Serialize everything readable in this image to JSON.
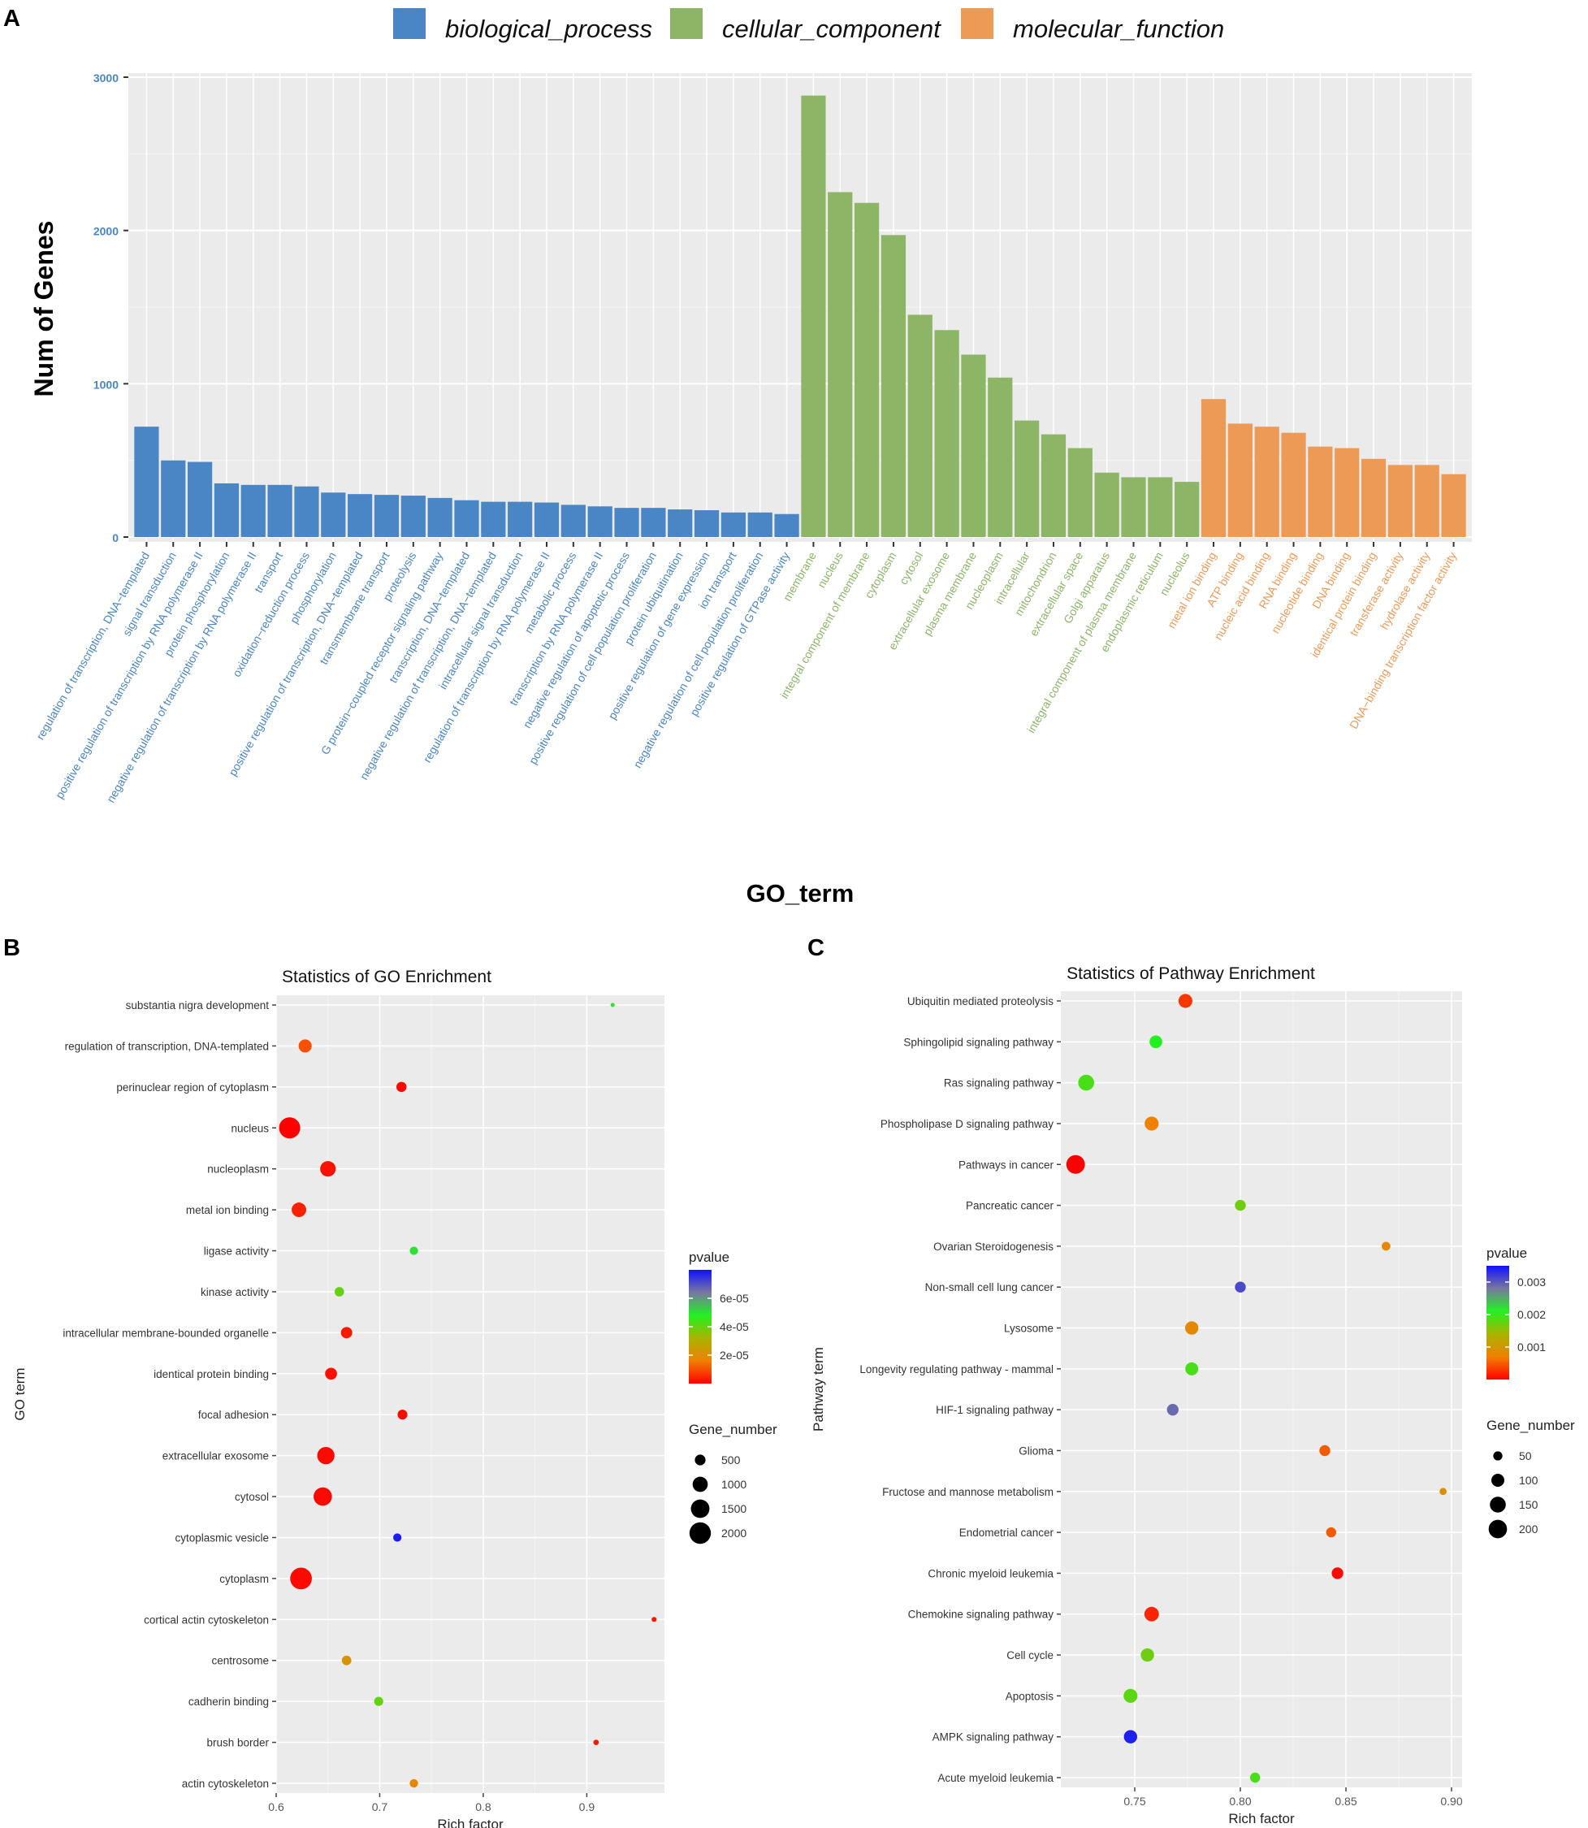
{
  "panels": {
    "a": "A",
    "b": "B",
    "c": "C"
  },
  "chart_data": [
    {
      "type": "bar",
      "panel": "A",
      "title": "",
      "xlabel": "GO_term",
      "ylabel": "Num of Genes",
      "ylim": [
        0,
        3000
      ],
      "yticks": [
        0,
        1000,
        2000,
        3000
      ],
      "legend_position": "top",
      "colors": {
        "biological_process": "#4a86c5",
        "cellular_component": "#8db566",
        "molecular_function": "#ee9a57"
      },
      "legend": [
        {
          "key": "biological_process",
          "label": "biological_process"
        },
        {
          "key": "cellular_component",
          "label": "cellular_component"
        },
        {
          "key": "molecular_function",
          "label": "molecular_function"
        }
      ],
      "series": [
        {
          "name": "biological_process",
          "categories": [
            "regulation of transcription, DNA−templated",
            "signal transduction",
            "positive regulation of transcription by RNA polymerase II",
            "protein phosphorylation",
            "negative regulation of transcription by RNA polymerase II",
            "transport",
            "oxidation−reduction process",
            "phosphorylation",
            "positive regulation of transcription, DNA−templated",
            "transmembrane transport",
            "proteolysis",
            "G protein−coupled receptor signaling pathway",
            "transcription, DNA−templated",
            "negative regulation of transcription, DNA−templated",
            "intracellular signal transduction",
            "regulation of transcription by RNA polymerase II",
            "metabolic process",
            "transcription by RNA polymerase II",
            "negative regulation of apoptotic process",
            "positive regulation of cell population proliferation",
            "protein ubiquitination",
            "positive regulation of gene expression",
            "ion transport",
            "negative regulation of cell population proliferation",
            "positive regulation of GTPase activity"
          ],
          "values": [
            720,
            500,
            490,
            350,
            340,
            340,
            330,
            290,
            280,
            275,
            270,
            255,
            240,
            230,
            230,
            225,
            210,
            200,
            190,
            190,
            180,
            175,
            160,
            160,
            150
          ]
        },
        {
          "name": "cellular_component",
          "categories": [
            "membrane",
            "nucleus",
            "integral component of membrane",
            "cytoplasm",
            "cytosol",
            "extracellular exosome",
            "plasma membrane",
            "nucleoplasm",
            "intracellular",
            "mitochondrion",
            "extracellular space",
            "Golgi apparatus",
            "integral component of plasma membrane",
            "endoplasmic reticulum",
            "nucleolus"
          ],
          "values": [
            2880,
            2250,
            2180,
            1970,
            1450,
            1350,
            1190,
            1040,
            760,
            670,
            580,
            420,
            390,
            390,
            360
          ]
        },
        {
          "name": "molecular_function",
          "categories": [
            "metal ion binding",
            "ATP binding",
            "nucleic acid binding",
            "RNA binding",
            "nucleotide binding",
            "DNA binding",
            "identical protein binding",
            "transferase activity",
            "hydrolase activity",
            "DNA−binding transcription factor activity"
          ],
          "values": [
            900,
            740,
            720,
            680,
            590,
            580,
            510,
            470,
            470,
            410
          ]
        }
      ]
    },
    {
      "type": "scatter",
      "panel": "B",
      "title": "Statistics of GO Enrichment",
      "xlabel": "Rich factor",
      "ylabel": "GO term",
      "xlim": [
        0.6,
        0.975
      ],
      "xticks": [
        "0.6",
        "0.7",
        "0.8",
        "0.9"
      ],
      "color_legend_title": "pvalue",
      "color_range": [
        0,
        8e-05
      ],
      "color_legend_ticks": [
        "6e-05",
        "4e-05",
        "2e-05"
      ],
      "color_legend_tick_values": [
        6e-05,
        4e-05,
        2e-05
      ],
      "size_legend_title": "Gene_number",
      "size_legend": [
        500,
        1000,
        1500,
        2000
      ],
      "size_legend_labels": [
        "500",
        "1000",
        "1500",
        "2000"
      ],
      "size_range": [
        0,
        2250
      ],
      "terms": [
        "substantia nigra development",
        "regulation of transcription, DNA-templated",
        "perinuclear region of cytoplasm",
        "nucleus",
        "nucleoplasm",
        "metal ion binding",
        "ligase activity",
        "kinase activity",
        "intracellular membrane-bounded organelle",
        "identical protein binding",
        "focal adhesion",
        "extracellular exosome",
        "cytosol",
        "cytoplasmic vesicle",
        "cytoplasm",
        "cortical actin cytoskeleton",
        "centrosome",
        "cadherin binding",
        "brush border",
        "actin cytoskeleton"
      ],
      "rich_factor": [
        0.925,
        0.628,
        0.721,
        0.613,
        0.65,
        0.622,
        0.733,
        0.661,
        0.668,
        0.653,
        0.722,
        0.648,
        0.645,
        0.717,
        0.624,
        0.965,
        0.668,
        0.699,
        0.909,
        0.733
      ],
      "pvalue": [
        5e-05,
        1e-05,
        1e-06,
        0.0,
        2e-06,
        4e-06,
        5e-05,
        4e-05,
        3e-06,
        2e-06,
        1e-06,
        1e-06,
        1e-06,
        7.8e-05,
        1e-06,
        3e-06,
        2.2e-05,
        4e-05,
        3e-06,
        1.8e-05
      ],
      "gene_number": [
        60,
        750,
        450,
        1950,
        1050,
        920,
        300,
        390,
        560,
        620,
        420,
        1300,
        1470,
        300,
        2050,
        110,
        400,
        360,
        130,
        310
      ]
    },
    {
      "type": "scatter",
      "panel": "C",
      "title": "Statistics of Pathway Enrichment",
      "xlabel": "Rich factor",
      "ylabel": "Pathway term",
      "xlim": [
        0.715,
        0.905
      ],
      "xticks": [
        "0.75",
        "0.80",
        "0.85",
        "0.90"
      ],
      "color_legend_title": "pvalue",
      "color_range": [
        0,
        0.0035
      ],
      "color_legend_ticks": [
        "0.003",
        "0.002",
        "0.001"
      ],
      "color_legend_tick_values": [
        0.003,
        0.002,
        0.001
      ],
      "size_legend_title": "Gene_number",
      "size_legend": [
        50,
        100,
        150,
        200
      ],
      "size_legend_labels": [
        "50",
        "100",
        "150",
        "200"
      ],
      "size_range": [
        0,
        225
      ],
      "terms": [
        "Ubiquitin mediated proteolysis",
        "Sphingolipid signaling pathway",
        "Ras signaling pathway",
        "Phospholipase D signaling pathway",
        "Pathways in cancer",
        "Pancreatic cancer",
        "Ovarian Steroidogenesis",
        "Non-small cell lung cancer",
        "Lysosome",
        "Longevity regulating pathway - mammal",
        "HIF-1 signaling pathway",
        "Glioma",
        "Fructose and mannose metabolism",
        "Endometrial cancer",
        "Chronic myeloid leukemia",
        "Chemokine signaling pathway",
        "Cell cycle",
        "Apoptosis",
        "AMPK signaling pathway",
        "Acute myeloid leukemia"
      ],
      "rich_factor": [
        0.774,
        0.76,
        0.727,
        0.758,
        0.722,
        0.8,
        0.869,
        0.8,
        0.777,
        0.777,
        0.768,
        0.84,
        0.896,
        0.843,
        0.846,
        0.758,
        0.756,
        0.748,
        0.748,
        0.807
      ],
      "pvalue": [
        0.0003,
        0.0021,
        0.0019,
        0.0007,
        0.0,
        0.0017,
        0.0008,
        0.0031,
        0.0008,
        0.0019,
        0.0029,
        0.0005,
        0.0009,
        0.0005,
        5e-05,
        0.0002,
        0.0017,
        0.0018,
        0.0034,
        0.0019
      ],
      "gene_number": [
        115,
        95,
        150,
        115,
        205,
        70,
        45,
        70,
        105,
        100,
        80,
        70,
        30,
        60,
        80,
        125,
        105,
        115,
        105,
        60
      ]
    }
  ]
}
